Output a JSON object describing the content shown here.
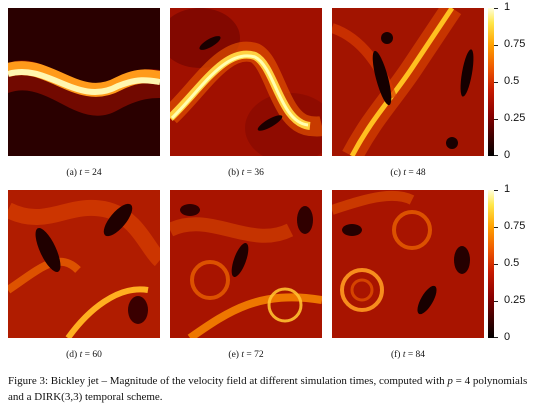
{
  "panels": [
    {
      "label": "(a) ",
      "t_var": "t",
      "rest": " = 24"
    },
    {
      "label": "(b) ",
      "t_var": "t",
      "rest": " = 36"
    },
    {
      "label": "(c) ",
      "t_var": "t",
      "rest": " = 48"
    },
    {
      "label": "(d) ",
      "t_var": "t",
      "rest": " = 60"
    },
    {
      "label": "(e) ",
      "t_var": "t",
      "rest": " = 72"
    },
    {
      "label": "(f) ",
      "t_var": "t",
      "rest": " = 84"
    }
  ],
  "colorbar": {
    "ticks": [
      "1",
      "0.75",
      "0.5",
      "0.25",
      "0"
    ]
  },
  "caption": {
    "prefix": "Figure 3:  Bickley jet – Magnitude of the velocity field at different simulation times, computed with ",
    "var": "p",
    "suffix": " = 4 polynomials and a DIRK(3,3) temporal scheme."
  }
}
